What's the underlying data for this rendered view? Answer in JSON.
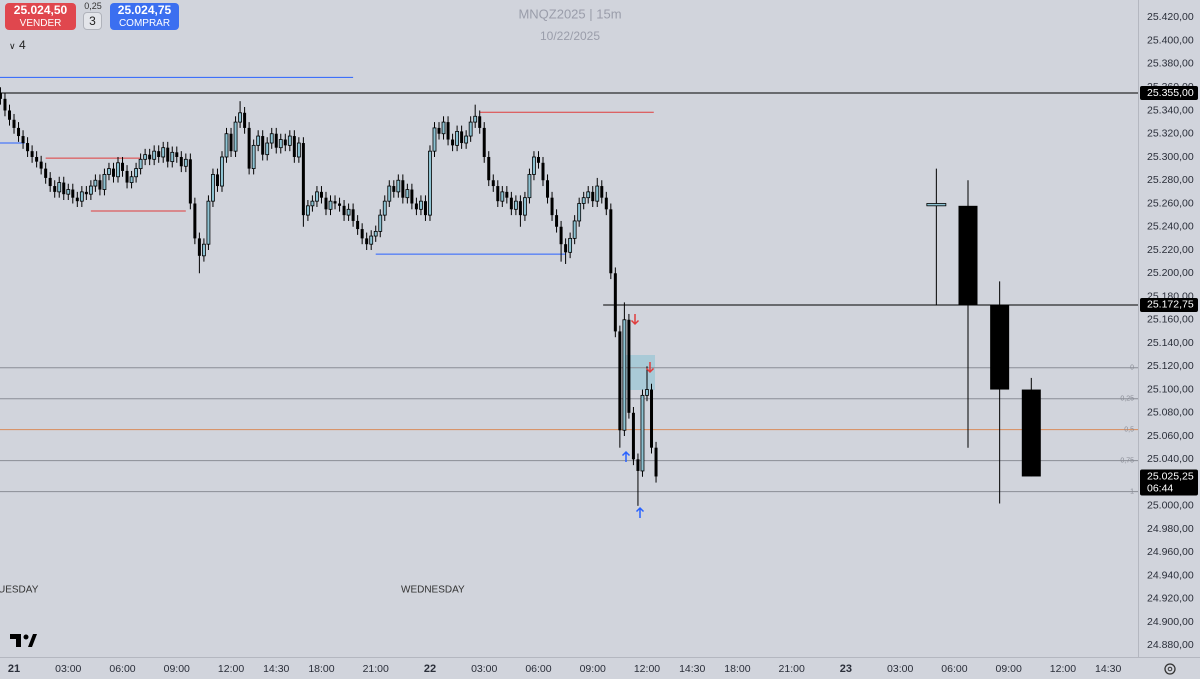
{
  "toolbar": {
    "sell_price": "25.024,50",
    "sell_label": "VENDER",
    "tick_size": "0,25",
    "quantity": "3",
    "buy_price": "25.024,75",
    "buy_label": "COMPRAR",
    "indicator_count": "4"
  },
  "chart_data": {
    "type": "candlestick",
    "title": "MNQZ2025  |  15m",
    "subtitle": "10/22/2025",
    "day_labels": [
      "UESDAY",
      "WEDNESDAY"
    ],
    "ylim": [
      24870,
      25435
    ],
    "xlim": [
      -3.1,
      248.6
    ],
    "yticks": [
      {
        "value": 25420,
        "label": "25.420,00"
      },
      {
        "value": 25400,
        "label": "25.400,00"
      },
      {
        "value": 25380,
        "label": "25.380,00"
      },
      {
        "value": 25360,
        "label": "25.360,00"
      },
      {
        "value": 25340,
        "label": "25.340,00"
      },
      {
        "value": 25320,
        "label": "25.320,00"
      },
      {
        "value": 25300,
        "label": "25.300,00"
      },
      {
        "value": 25280,
        "label": "25.280,00"
      },
      {
        "value": 25260,
        "label": "25.260,00"
      },
      {
        "value": 25240,
        "label": "25.240,00"
      },
      {
        "value": 25220,
        "label": "25.220,00"
      },
      {
        "value": 25200,
        "label": "25.200,00"
      },
      {
        "value": 25180,
        "label": "25.180,00"
      },
      {
        "value": 25160,
        "label": "25.160,00"
      },
      {
        "value": 25140,
        "label": "25.140,00"
      },
      {
        "value": 25120,
        "label": "25.120,00"
      },
      {
        "value": 25100,
        "label": "25.100,00"
      },
      {
        "value": 25080,
        "label": "25.080,00"
      },
      {
        "value": 25060,
        "label": "25.060,00"
      },
      {
        "value": 25040,
        "label": "25.040,00"
      },
      {
        "value": 25020,
        "label": "25.020,00"
      },
      {
        "value": 25000,
        "label": "25.000,00"
      },
      {
        "value": 24980,
        "label": "24.980,00"
      },
      {
        "value": 24960,
        "label": "24.960,00"
      },
      {
        "value": 24940,
        "label": "24.940,00"
      },
      {
        "value": 24920,
        "label": "24.920,00"
      },
      {
        "value": 24900,
        "label": "24.900,00"
      },
      {
        "value": 24880,
        "label": "24.880,00"
      }
    ],
    "xticks": [
      {
        "value": 0,
        "label": "21"
      },
      {
        "value": 12,
        "label": "03:00"
      },
      {
        "value": 24,
        "label": "06:00"
      },
      {
        "value": 36,
        "label": "09:00"
      },
      {
        "value": 48,
        "label": "12:00"
      },
      {
        "value": 58,
        "label": "14:30"
      },
      {
        "value": 68,
        "label": "18:00"
      },
      {
        "value": 80,
        "label": "21:00"
      },
      {
        "value": 92,
        "label": "22"
      },
      {
        "value": 104,
        "label": "03:00"
      },
      {
        "value": 116,
        "label": "06:00"
      },
      {
        "value": 128,
        "label": "09:00"
      },
      {
        "value": 140,
        "label": "12:00"
      },
      {
        "value": 150,
        "label": "14:30"
      },
      {
        "value": 160,
        "label": "18:00"
      },
      {
        "value": 172,
        "label": "21:00"
      },
      {
        "value": 184,
        "label": "23"
      },
      {
        "value": 196,
        "label": "03:00"
      },
      {
        "value": 208,
        "label": "06:00"
      },
      {
        "value": 220,
        "label": "09:00"
      },
      {
        "value": 232,
        "label": "12:00"
      },
      {
        "value": 242,
        "label": "14:30"
      }
    ],
    "series": [
      {
        "up_color": "#8ec3d3",
        "down_color": "#000000",
        "body_width": 3,
        "x": [
          -3,
          -2,
          -1,
          0,
          1,
          2,
          3,
          4,
          5,
          6,
          7,
          8,
          9,
          10,
          11,
          12,
          13,
          14,
          15,
          16,
          17,
          18,
          19,
          20,
          21,
          22,
          23,
          24,
          25,
          26,
          27,
          28,
          29,
          30,
          31,
          32,
          33,
          34,
          35,
          36,
          37,
          38,
          39,
          40,
          41,
          42,
          43,
          44,
          45,
          46,
          47,
          48,
          49,
          50,
          51,
          52,
          53,
          54,
          55,
          56,
          57,
          58,
          59,
          60,
          61,
          62,
          63,
          64,
          65,
          66,
          67,
          68,
          69,
          70,
          71,
          72,
          73,
          74,
          75,
          76,
          77,
          78,
          79,
          80,
          81,
          82,
          83,
          84,
          85,
          86,
          87,
          88,
          89,
          90,
          91,
          92,
          93,
          94,
          95,
          96,
          97,
          98,
          99,
          100,
          101,
          102,
          103,
          104,
          105,
          106,
          107,
          108,
          109,
          110,
          111,
          112,
          113,
          114,
          115,
          116,
          117,
          118,
          119,
          120,
          121,
          122,
          123,
          124,
          125,
          126,
          127,
          128,
          129,
          130,
          131,
          132,
          133,
          134,
          135,
          136,
          137,
          138,
          139,
          140,
          141,
          142
        ],
        "open": [
          25355,
          25350,
          25340,
          25332,
          25325,
          25318,
          25312,
          25305,
          25300,
          25296,
          25290,
          25282,
          25275,
          25270,
          25278,
          25268,
          25272,
          25265,
          25262,
          25270,
          25268,
          25275,
          25280,
          25272,
          25285,
          25290,
          25283,
          25295,
          25288,
          25278,
          25283,
          25290,
          25298,
          25302,
          25298,
          25305,
          25300,
          25308,
          25296,
          25304,
          25300,
          25292,
          25298,
          25260,
          25230,
          25215,
          25225,
          25262,
          25285,
          25275,
          25300,
          25320,
          25305,
          25330,
          25338,
          25325,
          25290,
          25310,
          25318,
          25302,
          25312,
          25320,
          25308,
          25315,
          25310,
          25318,
          25300,
          25312,
          25250,
          25258,
          25262,
          25270,
          25265,
          25255,
          25262,
          25260,
          25258,
          25250,
          25255,
          25245,
          25238,
          25230,
          25225,
          25232,
          25236,
          25250,
          25262,
          25275,
          25270,
          25280,
          25265,
          25272,
          25260,
          25255,
          25262,
          25250,
          25305,
          25325,
          25320,
          25330,
          25315,
          25310,
          25322,
          25312,
          25318,
          25330,
          25335,
          25325,
          25300,
          25280,
          25275,
          25262,
          25270,
          25265,
          25255,
          25262,
          25250,
          25265,
          25285,
          25300,
          25295,
          25280,
          25265,
          25250,
          25240,
          25225,
          25218,
          25230,
          25245,
          25260,
          25265,
          25270,
          25262,
          25275,
          25265,
          25255,
          25200,
          25150,
          25065,
          25160,
          25080,
          25040,
          25030,
          25095,
          25100,
          25050
        ],
        "high": [
          25360,
          25355,
          25345,
          25337,
          25330,
          25323,
          25317,
          25310,
          25305,
          25301,
          25295,
          25287,
          25280,
          25283,
          25283,
          25277,
          25277,
          25270,
          25275,
          25275,
          25280,
          25285,
          25285,
          25290,
          25295,
          25295,
          25300,
          25300,
          25293,
          25288,
          25295,
          25303,
          25307,
          25307,
          25310,
          25310,
          25313,
          25313,
          25309,
          25309,
          25305,
          25303,
          25303,
          25265,
          25235,
          25230,
          25267,
          25290,
          25290,
          25305,
          25325,
          25325,
          25335,
          25348,
          25343,
          25330,
          25315,
          25323,
          25323,
          25317,
          25325,
          25325,
          25320,
          25320,
          25323,
          25323,
          25317,
          25317,
          25263,
          25267,
          25275,
          25275,
          25270,
          25267,
          25267,
          25265,
          25263,
          25260,
          25260,
          25250,
          25243,
          25235,
          25237,
          25241,
          25255,
          25267,
          25280,
          25280,
          25285,
          25285,
          25277,
          25277,
          25265,
          25267,
          25267,
          25310,
          25330,
          25330,
          25335,
          25335,
          25320,
          25327,
          25327,
          25323,
          25335,
          25345,
          25340,
          25330,
          25305,
          25285,
          25280,
          25275,
          25275,
          25270,
          25267,
          25267,
          25270,
          25290,
          25305,
          25305,
          25300,
          25285,
          25270,
          25255,
          25245,
          25230,
          25235,
          25250,
          25265,
          25270,
          25275,
          25275,
          25282,
          25280,
          25270,
          25260,
          25205,
          25155,
          25175,
          25165,
          25085,
          25045,
          25100,
          25120,
          25105,
          25055
        ],
        "low": [
          25345,
          25335,
          25327,
          25320,
          25313,
          25307,
          25300,
          25295,
          25291,
          25285,
          25277,
          25270,
          25265,
          25265,
          25263,
          25263,
          25260,
          25257,
          25257,
          25263,
          25263,
          25270,
          25267,
          25267,
          25280,
          25278,
          25278,
          25283,
          25273,
          25273,
          25278,
          25285,
          25293,
          25293,
          25293,
          25295,
          25295,
          25291,
          25291,
          25295,
          25287,
          25287,
          25255,
          25225,
          25200,
          25210,
          25220,
          25257,
          25270,
          25270,
          25295,
          25300,
          25300,
          25325,
          25320,
          25285,
          25285,
          25305,
          25297,
          25297,
          25307,
          25303,
          25303,
          25305,
          25305,
          25295,
          25295,
          25240,
          25245,
          25253,
          25257,
          25260,
          25250,
          25250,
          25255,
          25253,
          25245,
          25245,
          25240,
          25233,
          25225,
          25220,
          25220,
          25227,
          25231,
          25245,
          25257,
          25265,
          25265,
          25260,
          25260,
          25255,
          25250,
          25250,
          25245,
          25245,
          25300,
          25315,
          25315,
          25310,
          25305,
          25305,
          25307,
          25307,
          25313,
          25325,
          25320,
          25295,
          25275,
          25270,
          25257,
          25257,
          25260,
          25250,
          25250,
          25240,
          25245,
          25260,
          25280,
          25290,
          25275,
          25260,
          25245,
          25235,
          25210,
          25208,
          25213,
          25225,
          25240,
          25255,
          25260,
          25257,
          25257,
          25260,
          25250,
          25195,
          25145,
          25050,
          25060,
          25075,
          25035,
          25000,
          25025,
          25090,
          25045,
          25020
        ],
        "close": [
          25350,
          25340,
          25332,
          25325,
          25318,
          25312,
          25305,
          25300,
          25296,
          25290,
          25282,
          25275,
          25270,
          25278,
          25268,
          25272,
          25265,
          25262,
          25270,
          25268,
          25275,
          25280,
          25272,
          25285,
          25290,
          25283,
          25295,
          25288,
          25278,
          25283,
          25290,
          25298,
          25302,
          25298,
          25305,
          25300,
          25308,
          25296,
          25304,
          25300,
          25292,
          25298,
          25260,
          25230,
          25215,
          25225,
          25262,
          25285,
          25275,
          25300,
          25320,
          25305,
          25330,
          25338,
          25325,
          25290,
          25310,
          25318,
          25302,
          25312,
          25320,
          25308,
          25315,
          25310,
          25318,
          25300,
          25312,
          25250,
          25258,
          25262,
          25270,
          25265,
          25255,
          25262,
          25260,
          25258,
          25250,
          25255,
          25245,
          25238,
          25230,
          25225,
          25232,
          25236,
          25250,
          25262,
          25275,
          25270,
          25280,
          25265,
          25272,
          25260,
          25255,
          25262,
          25250,
          25305,
          25325,
          25320,
          25330,
          25315,
          25310,
          25322,
          25312,
          25318,
          25330,
          25335,
          25325,
          25300,
          25280,
          25275,
          25262,
          25270,
          25265,
          25255,
          25262,
          25250,
          25265,
          25285,
          25300,
          25295,
          25280,
          25265,
          25250,
          25240,
          25225,
          25218,
          25230,
          25245,
          25260,
          25265,
          25270,
          25262,
          25275,
          25265,
          25255,
          25200,
          25150,
          25065,
          25160,
          25080,
          25040,
          25030,
          25095,
          25100,
          25050,
          25025.25
        ]
      },
      {
        "up_color": "#8ec3d3",
        "down_color": "#000000",
        "body_width": 19,
        "x": [
          204,
          211,
          218,
          225
        ],
        "open": [
          25258,
          25258,
          25172.75,
          25100
        ],
        "high": [
          25290,
          25280,
          25193,
          25110
        ],
        "low": [
          25172.75,
          25050,
          25002,
          25025.25
        ],
        "close": [
          25260,
          25172.75,
          25100,
          25025.25
        ]
      }
    ],
    "levels": [
      {
        "value": 25368.5,
        "color": "#2962ff",
        "from": -3.1,
        "to": 75
      },
      {
        "value": 25355,
        "color": "#000000",
        "from": -3.1,
        "to": 248.6
      },
      {
        "value": 25338.5,
        "color": "#e03c3c",
        "from": 103,
        "to": 141.5
      },
      {
        "value": 25312,
        "color": "#2962ff",
        "from": -3.1,
        "to": 2.4
      },
      {
        "value": 25299,
        "color": "#e03c3c",
        "from": 7,
        "to": 28
      },
      {
        "value": 25253.5,
        "color": "#e03c3c",
        "from": 17,
        "to": 38
      },
      {
        "value": 25216.5,
        "color": "#2962ff",
        "from": 80,
        "to": 122
      },
      {
        "value": 25172.75,
        "color": "#000000",
        "from": 130.3,
        "to": 248.6
      }
    ],
    "fib": {
      "top": 25118.75,
      "bottom": 25012.25,
      "ratios": [
        0,
        {
          "value": 0.25,
          "label": "0,25"
        },
        {
          "value": 0.5,
          "label": "0,5"
        },
        {
          "value": 0.75,
          "label": "0,75"
        },
        1
      ],
      "colors": [
        "#8a8d96",
        "#8a8d96",
        "#d98b5a",
        "#8a8d96",
        "#8a8d96"
      ]
    },
    "price_tags": [
      {
        "value": 25355,
        "label": "25.355,00"
      },
      {
        "value": 25172.75,
        "label": "25.172,75"
      },
      {
        "value": 25025.25,
        "label": "25.025,25",
        "countdown": "06:44"
      }
    ]
  }
}
